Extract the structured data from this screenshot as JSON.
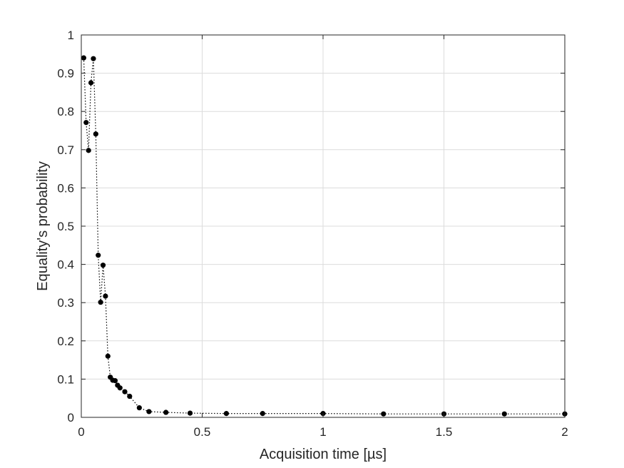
{
  "chart_data": {
    "type": "line",
    "title": "",
    "xlabel": "Acquisition time [µs]",
    "ylabel": "Equality's probability",
    "xlim": [
      0,
      2
    ],
    "ylim": [
      0,
      1
    ],
    "xticks": [
      0,
      0.5,
      1,
      1.5,
      2
    ],
    "yticks": [
      0,
      0.1,
      0.2,
      0.3,
      0.4,
      0.5,
      0.6,
      0.7,
      0.8,
      0.9,
      1
    ],
    "grid": true,
    "series": [
      {
        "x": [
          0.01,
          0.02,
          0.03,
          0.04,
          0.05,
          0.06,
          0.07,
          0.08,
          0.09,
          0.1,
          0.11,
          0.12,
          0.13,
          0.14,
          0.15,
          0.16,
          0.18,
          0.2,
          0.24,
          0.28,
          0.35,
          0.45,
          0.6,
          0.75,
          1.0,
          1.25,
          1.5,
          1.75,
          2.0
        ],
        "y": [
          0.94,
          0.771,
          0.698,
          0.875,
          0.938,
          0.741,
          0.424,
          0.301,
          0.398,
          0.317,
          0.16,
          0.105,
          0.097,
          0.096,
          0.084,
          0.077,
          0.067,
          0.055,
          0.025,
          0.015,
          0.013,
          0.011,
          0.01,
          0.01,
          0.01,
          0.009,
          0.009,
          0.009,
          0.009
        ],
        "color": "#000000"
      }
    ]
  }
}
